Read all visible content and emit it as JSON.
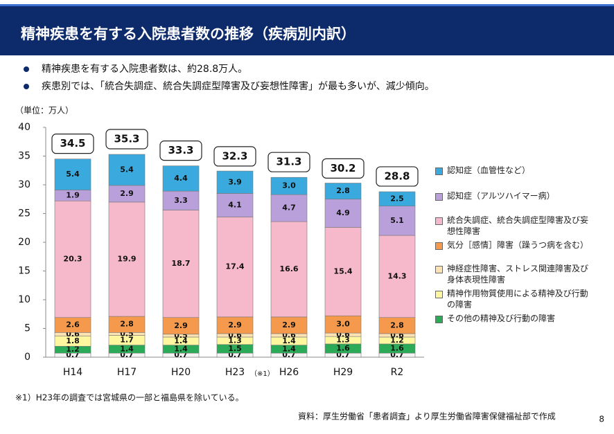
{
  "header": {
    "title": "精神疾患を有する入院患者数の推移（疾病別内訳）"
  },
  "bullets": [
    "精神疾患を有する入院患者数は、約28.8万人。",
    "疾患別では、「統合失調症、統合失調症型障害及び妄想性障害」が最も多いが、減少傾向。"
  ],
  "chart_data": {
    "type": "stacked_bar",
    "unit_label": "（単位：万人）",
    "categories": [
      "H14",
      "H17",
      "H20",
      "H23",
      "H26",
      "H29",
      "R2"
    ],
    "x_annotation": {
      "category": 3,
      "text": "（※1）"
    },
    "ylim": [
      0,
      40
    ],
    "yticks": [
      0,
      5,
      10,
      15,
      20,
      25,
      30,
      35,
      40
    ],
    "series": [
      {
        "name": null,
        "color": "#f4f4f4",
        "values": [
          0.7,
          0.7,
          0.7,
          0.7,
          0.7,
          0.7,
          0.7
        ]
      },
      {
        "name": "その他の精神及び行動の障害",
        "color": "#2bab57",
        "values": [
          1.2,
          1.4,
          1.4,
          1.5,
          1.4,
          1.6,
          1.6
        ]
      },
      {
        "name": "精神作用物質使用による精神及び行動の障害",
        "color": "#fff7a0",
        "values": [
          1.8,
          1.7,
          1.4,
          1.3,
          1.4,
          1.3,
          1.2
        ]
      },
      {
        "name": "神経症性障害、ストレス関連障害及び身体表現性障害",
        "color": "#fde3b4",
        "values": [
          0.6,
          0.5,
          0.5,
          0.6,
          0.6,
          0.6,
          0.6
        ]
      },
      {
        "name": "気分［感情］障害（躁うつ病を含む）",
        "color": "#f59a4c",
        "values": [
          2.6,
          2.8,
          2.9,
          2.9,
          2.9,
          3.0,
          2.8
        ],
        "value_labels": [
          "2.6",
          "2.8",
          "2.9",
          "2.9",
          "2.9",
          "3.0",
          "2.8"
        ]
      },
      {
        "name": "統合失調症、統合失調症型障害及び妄想性障害",
        "color": "#f6b8cb",
        "values": [
          20.3,
          19.9,
          18.7,
          17.4,
          16.6,
          15.4,
          14.3
        ]
      },
      {
        "name": "認知症（アルツハイマー病）",
        "color": "#b9a0da",
        "values": [
          1.9,
          2.9,
          3.3,
          4.1,
          4.7,
          4.9,
          5.1
        ]
      },
      {
        "name": "認知症（血管性など）",
        "color": "#3aaade",
        "values": [
          5.4,
          5.4,
          4.4,
          3.9,
          3.0,
          2.8,
          2.5
        ],
        "value_labels": [
          "5.4",
          "5.4",
          "4.4",
          "3.9",
          "3.0",
          "2.8",
          "2.5"
        ]
      }
    ],
    "totals": [
      34.5,
      35.3,
      33.3,
      32.3,
      31.3,
      30.2,
      28.8
    ]
  },
  "footnote": "※1）H23年の調査では宮城県の一部と福島県を除いている。",
  "source": "資料：厚生労働省「患者調査」より厚生労働省障害保健福祉部で作成",
  "page_number": "8"
}
